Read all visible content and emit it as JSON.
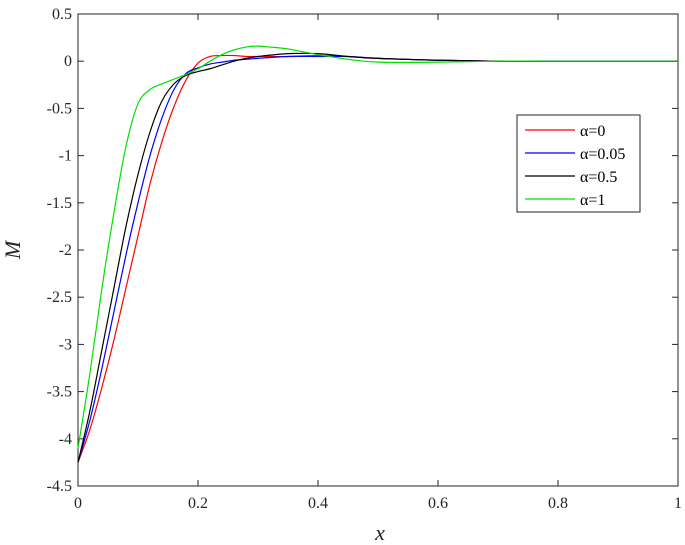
{
  "chart_data": {
    "type": "line",
    "title": "",
    "xlabel": "x",
    "ylabel": "M",
    "xlim": [
      0,
      1
    ],
    "ylim": [
      -4.5,
      0.5
    ],
    "xticks": [
      0,
      0.2,
      0.4,
      0.6,
      0.8,
      1
    ],
    "xtick_labels": [
      "0",
      "0.2",
      "0.4",
      "0.6",
      "0.8",
      "1"
    ],
    "yticks": [
      0.5,
      0,
      -0.5,
      -1,
      -1.5,
      -2,
      -2.5,
      -3,
      -3.5,
      -4,
      -4.5
    ],
    "ytick_labels": [
      "0.5",
      "0",
      "-0.5",
      "-1",
      "-1.5",
      "-2",
      "-2.5",
      "-3",
      "-3.5",
      "-4",
      "-4.5"
    ],
    "grid": false,
    "legend_position": "right",
    "series": [
      {
        "name": "α=0",
        "color": "#ff0000",
        "x": [
          0,
          0.02,
          0.04,
          0.06,
          0.08,
          0.1,
          0.12,
          0.14,
          0.16,
          0.18,
          0.2,
          0.22,
          0.24,
          0.26,
          0.28,
          0.3,
          0.35,
          0.4,
          0.45,
          0.5,
          0.6,
          0.7,
          0.8,
          1.0
        ],
        "y": [
          -4.25,
          -3.9,
          -3.45,
          -2.95,
          -2.4,
          -1.85,
          -1.3,
          -0.85,
          -0.48,
          -0.2,
          -0.02,
          0.05,
          0.06,
          0.06,
          0.05,
          0.05,
          0.05,
          0.06,
          0.05,
          0.03,
          0.01,
          0.0,
          0.0,
          0.0
        ]
      },
      {
        "name": "α=0.05",
        "color": "#0000ff",
        "x": [
          0,
          0.02,
          0.04,
          0.06,
          0.08,
          0.1,
          0.12,
          0.14,
          0.16,
          0.18,
          0.2,
          0.22,
          0.24,
          0.26,
          0.28,
          0.3,
          0.35,
          0.4,
          0.45,
          0.5,
          0.6,
          0.7,
          0.8,
          1.0
        ],
        "y": [
          -4.25,
          -3.8,
          -3.25,
          -2.65,
          -2.05,
          -1.5,
          -1.0,
          -0.6,
          -0.3,
          -0.13,
          -0.07,
          -0.03,
          -0.01,
          0.01,
          0.02,
          0.03,
          0.05,
          0.05,
          0.05,
          0.03,
          0.01,
          0.0,
          0.0,
          0.0
        ]
      },
      {
        "name": "α=0.5",
        "color": "#000000",
        "x": [
          0,
          0.02,
          0.04,
          0.06,
          0.08,
          0.1,
          0.12,
          0.14,
          0.16,
          0.18,
          0.2,
          0.22,
          0.24,
          0.26,
          0.28,
          0.3,
          0.35,
          0.4,
          0.45,
          0.5,
          0.6,
          0.7,
          0.8,
          1.0
        ],
        "y": [
          -4.25,
          -3.7,
          -3.05,
          -2.4,
          -1.75,
          -1.2,
          -0.75,
          -0.42,
          -0.24,
          -0.15,
          -0.11,
          -0.08,
          -0.04,
          0.0,
          0.03,
          0.05,
          0.08,
          0.08,
          0.05,
          0.03,
          0.01,
          0.0,
          0.0,
          0.0
        ]
      },
      {
        "name": "α=1",
        "color": "#00e000",
        "x": [
          0,
          0.02,
          0.04,
          0.06,
          0.08,
          0.1,
          0.12,
          0.14,
          0.16,
          0.18,
          0.2,
          0.22,
          0.24,
          0.26,
          0.28,
          0.3,
          0.32,
          0.35,
          0.4,
          0.45,
          0.5,
          0.6,
          0.7,
          0.8,
          1.0
        ],
        "y": [
          -4.1,
          -3.3,
          -2.4,
          -1.6,
          -0.9,
          -0.45,
          -0.3,
          -0.24,
          -0.19,
          -0.14,
          -0.08,
          0.0,
          0.07,
          0.12,
          0.15,
          0.16,
          0.15,
          0.13,
          0.07,
          0.02,
          -0.01,
          -0.01,
          0.0,
          0.0,
          0.0
        ]
      }
    ]
  }
}
